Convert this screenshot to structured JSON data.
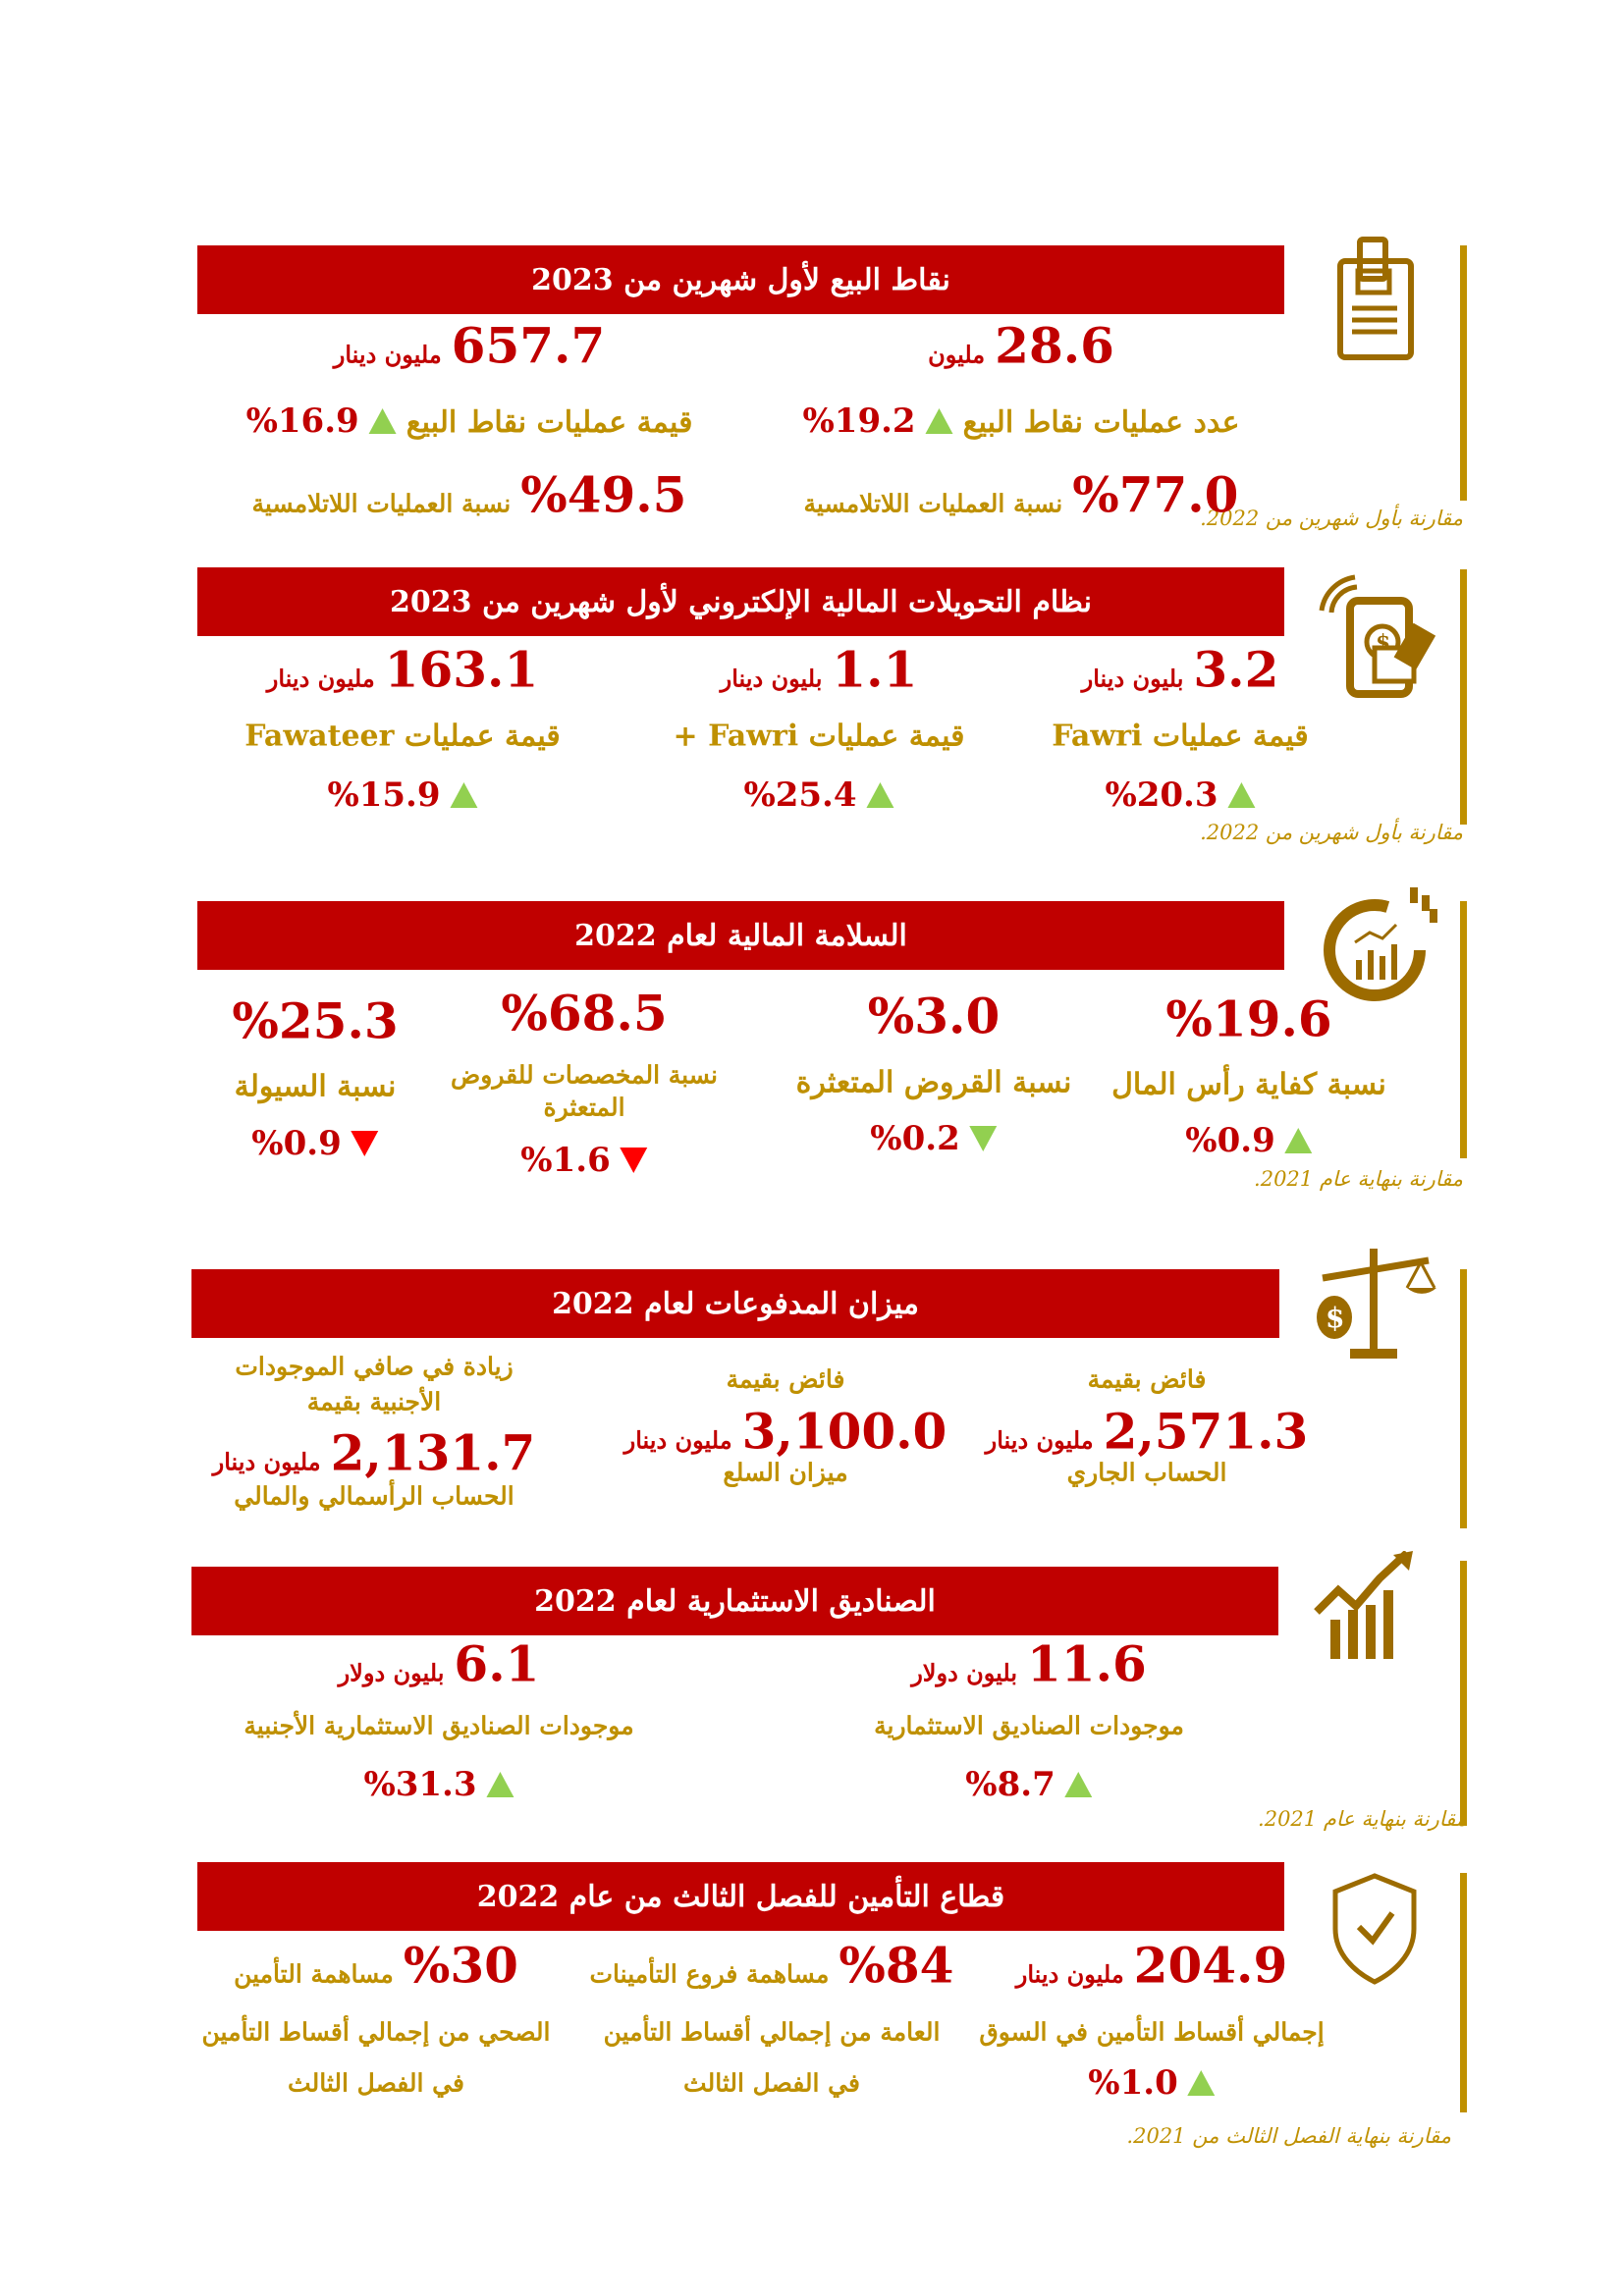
{
  "colors": {
    "header_bg": "#C00000",
    "accent_gold": "#BF9000",
    "value_red": "#C00000",
    "icon_brown": "#9C6B00",
    "trend_up": "#92D050",
    "trend_down": "#FF0000"
  },
  "sections": [
    {
      "title": "نقاط البيع لأول شهرين من 2023",
      "icon": "pos-terminal-icon",
      "note": "مقارنة بأول شهرين من 2022.",
      "columns": [
        {
          "lines": [
            [
              {
                "t": "28.6",
                "s": "value"
              },
              {
                "t": "مليون",
                "s": "unit"
              }
            ],
            [
              {
                "t": "عدد عمليات نقاط البيع",
                "s": "label"
              },
              {
                "trend": "up"
              },
              {
                "t": "%19.2",
                "s": "change"
              }
            ],
            [
              {
                "t": "%77.0",
                "s": "value"
              },
              {
                "t": "نسبة العمليات اللاتلامسية",
                "s": "labelsm"
              }
            ]
          ]
        },
        {
          "lines": [
            [
              {
                "t": "657.7",
                "s": "value"
              },
              {
                "t": "مليون دينار",
                "s": "unit"
              }
            ],
            [
              {
                "t": "قيمة عمليات نقاط البيع",
                "s": "label"
              },
              {
                "trend": "up"
              },
              {
                "t": "%16.9",
                "s": "change"
              }
            ],
            [
              {
                "t": "%49.5",
                "s": "value"
              },
              {
                "t": "نسبة العمليات اللاتلامسية",
                "s": "labelsm"
              }
            ]
          ]
        }
      ]
    },
    {
      "title": "نظام التحويلات المالية الإلكتروني لأول شهرين من 2023",
      "icon": "mobile-payment-icon",
      "note": "مقارنة بأول شهرين من 2022.",
      "columns": [
        {
          "lines": [
            [
              {
                "t": "3.2",
                "s": "value"
              },
              {
                "t": "بليون دينار",
                "s": "unit"
              }
            ],
            [
              {
                "t": "قيمة عمليات Fawri",
                "s": "label"
              }
            ],
            [
              {
                "trend": "up"
              },
              {
                "t": "%20.3",
                "s": "change"
              }
            ]
          ]
        },
        {
          "lines": [
            [
              {
                "t": "1.1",
                "s": "value"
              },
              {
                "t": "بليون دينار",
                "s": "unit"
              }
            ],
            [
              {
                "t": "قيمة عمليات Fawri +",
                "s": "label"
              }
            ],
            [
              {
                "trend": "up"
              },
              {
                "t": "%25.4",
                "s": "change"
              }
            ]
          ]
        },
        {
          "lines": [
            [
              {
                "t": "163.1",
                "s": "value"
              },
              {
                "t": "مليون دينار",
                "s": "unit"
              }
            ],
            [
              {
                "t": "قيمة عمليات Fawateer",
                "s": "label"
              }
            ],
            [
              {
                "trend": "up"
              },
              {
                "t": "%15.9",
                "s": "change"
              }
            ]
          ]
        }
      ]
    },
    {
      "title": "السلامة المالية لعام 2022",
      "icon": "financial-health-gauge-icon",
      "note": "مقارنة بنهاية عام 2021.",
      "columns": [
        {
          "lines": [
            [
              {
                "t": "%19.6",
                "s": "value"
              }
            ],
            [
              {
                "t": "نسبة كفاية رأس المال",
                "s": "label"
              }
            ],
            [
              {
                "trend": "up"
              },
              {
                "t": "%0.9",
                "s": "change"
              }
            ]
          ]
        },
        {
          "lines": [
            [
              {
                "t": "%3.0",
                "s": "value"
              }
            ],
            [
              {
                "t": "نسبة القروض المتعثرة",
                "s": "label"
              }
            ],
            [
              {
                "trend": "down-green"
              },
              {
                "t": "%0.2",
                "s": "change"
              }
            ]
          ]
        },
        {
          "lines": [
            [
              {
                "t": "%68.5",
                "s": "value"
              }
            ],
            [
              {
                "t": "نسبة المخصصات للقروض",
                "s": "labelsm"
              }
            ],
            [
              {
                "t": "المتعثرة",
                "s": "labelsm"
              }
            ],
            [
              {
                "trend": "down"
              },
              {
                "t": "%1.6",
                "s": "change"
              }
            ]
          ]
        },
        {
          "lines": [
            [
              {
                "t": "%25.3",
                "s": "value"
              }
            ],
            [
              {
                "t": "نسبة السيولة",
                "s": "label"
              }
            ],
            [
              {
                "trend": "down"
              },
              {
                "t": "%0.9",
                "s": "change"
              }
            ]
          ]
        }
      ]
    },
    {
      "title": "ميزان المدفوعات لعام 2022",
      "icon": "balance-scale-icon",
      "note": "",
      "columns": [
        {
          "lines": [
            [
              {
                "t": "فائض بقيمة",
                "s": "labelsm"
              }
            ],
            [
              {
                "t": "2,571.3",
                "s": "value"
              },
              {
                "t": "مليون دينار",
                "s": "unit"
              }
            ],
            [
              {
                "t": "الحساب الجاري",
                "s": "labelsm"
              }
            ]
          ]
        },
        {
          "lines": [
            [
              {
                "t": "فائض بقيمة",
                "s": "labelsm"
              }
            ],
            [
              {
                "t": "3,100.0",
                "s": "value"
              },
              {
                "t": "مليون دينار",
                "s": "unit"
              }
            ],
            [
              {
                "t": "ميزان السلع",
                "s": "labelsm"
              }
            ]
          ]
        },
        {
          "lines": [
            [
              {
                "t": "زيادة في صافي الموجودات",
                "s": "labelsm"
              }
            ],
            [
              {
                "t": "الأجنبية بقيمة",
                "s": "labelsm"
              }
            ],
            [
              {
                "t": "2,131.7",
                "s": "value"
              },
              {
                "t": "مليون دينار",
                "s": "unit"
              }
            ],
            [
              {
                "t": "الحساب الرأسمالي والمالي",
                "s": "labelsm"
              }
            ]
          ]
        }
      ]
    },
    {
      "title": "الصناديق الاستثمارية لعام 2022",
      "icon": "growth-chart-icon",
      "note": "مقارنة بنهاية عام 2021.",
      "columns": [
        {
          "lines": [
            [
              {
                "t": "11.6",
                "s": "value"
              },
              {
                "t": "بليون دولار",
                "s": "unit"
              }
            ],
            [
              {
                "t": "موجودات الصناديق الاستثمارية",
                "s": "labelsm"
              }
            ],
            [
              {
                "trend": "up"
              },
              {
                "t": "%8.7",
                "s": "change"
              }
            ]
          ]
        },
        {
          "lines": [
            [
              {
                "t": "6.1",
                "s": "value"
              },
              {
                "t": "بليون دولار",
                "s": "unit"
              }
            ],
            [
              {
                "t": "موجودات الصناديق الاستثمارية الأجنبية",
                "s": "labelsm"
              }
            ],
            [
              {
                "trend": "up"
              },
              {
                "t": "%31.3",
                "s": "change"
              }
            ]
          ]
        }
      ]
    },
    {
      "title": "قطاع التأمين للفصل الثالث من عام 2022",
      "icon": "shield-check-icon",
      "note": "مقارنة بنهاية الفصل الثالث من 2021.",
      "columns": [
        {
          "lines": [
            [
              {
                "t": "204.9",
                "s": "value"
              },
              {
                "t": "مليون دينار",
                "s": "unit"
              }
            ],
            [
              {
                "t": "إجمالي أقساط التأمين في السوق",
                "s": "labelsm"
              }
            ],
            [
              {
                "trend": "up"
              },
              {
                "t": "%1.0",
                "s": "change"
              }
            ]
          ]
        },
        {
          "lines": [
            [
              {
                "t": "%84",
                "s": "value"
              },
              {
                "t": "مساهمة فروع التأمينات",
                "s": "labelsm"
              }
            ],
            [
              {
                "t": "العامة من إجمالي أقساط التأمين",
                "s": "labelsm"
              }
            ],
            [
              {
                "t": "في الفصل الثالث",
                "s": "labelsm"
              }
            ]
          ]
        },
        {
          "lines": [
            [
              {
                "t": "%30",
                "s": "value"
              },
              {
                "t": "مساهمة التأمين",
                "s": "labelsm"
              }
            ],
            [
              {
                "t": "الصحي من إجمالي أقساط التأمين",
                "s": "labelsm"
              }
            ],
            [
              {
                "t": "في الفصل الثالث",
                "s": "labelsm"
              }
            ]
          ]
        }
      ]
    }
  ]
}
